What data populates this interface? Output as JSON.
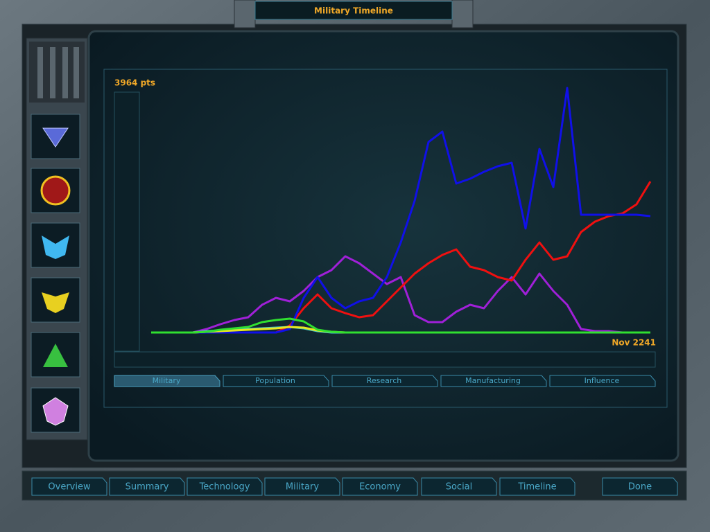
{
  "header": {
    "title": "Military Timeline"
  },
  "chart_data": {
    "type": "line",
    "categories": [
      null,
      null,
      null,
      null,
      null,
      null,
      null,
      null,
      null,
      null,
      null,
      null,
      null,
      null,
      null,
      null,
      null,
      null,
      null,
      null,
      null,
      null,
      null,
      null,
      null,
      null,
      null,
      null,
      null,
      null,
      null,
      null,
      null,
      null,
      null,
      null,
      "Nov 2241"
    ],
    "ylim": [
      0,
      3964
    ],
    "yticks": [
      {
        "value": 3964,
        "label": "3964 pts"
      }
    ],
    "grid": false,
    "series": [
      {
        "color": "#a020d8",
        "values": [
          0,
          0,
          0,
          0,
          56,
          135,
          202,
          247,
          449,
          562,
          505,
          674,
          898,
          1011,
          1235,
          1123,
          954,
          786,
          898,
          281,
          168,
          168,
          337,
          449,
          393,
          674,
          898,
          617,
          954,
          674,
          449,
          56,
          22,
          22,
          0,
          0,
          0
        ]
      },
      {
        "color": "#f01010",
        "values": [
          0,
          0,
          0,
          0,
          0,
          0,
          0,
          0,
          0,
          0,
          112,
          393,
          618,
          393,
          314,
          247,
          281,
          505,
          730,
          954,
          1123,
          1258,
          1348,
          1067,
          1011,
          898,
          842,
          1179,
          1460,
          1179,
          1235,
          1628,
          1797,
          1887,
          1932,
          2078,
          2448
        ]
      },
      {
        "color": "#1010e8",
        "values": [
          0,
          0,
          0,
          0,
          0,
          0,
          0,
          0,
          0,
          0,
          56,
          562,
          899,
          562,
          393,
          505,
          562,
          899,
          1460,
          2134,
          3088,
          3256,
          2414,
          2493,
          2605,
          2695,
          2751,
          1685,
          2976,
          2358,
          3964,
          1909,
          1909,
          1909,
          1909,
          1909,
          1887
        ]
      },
      {
        "color": "#40c8c8",
        "values": [
          0,
          0,
          0,
          0,
          22,
          34,
          45,
          56,
          67,
          79,
          90,
          67,
          22,
          0,
          0,
          0,
          0,
          0,
          0,
          0,
          0,
          0,
          0,
          0,
          0,
          0,
          0,
          0,
          0,
          0,
          0,
          0,
          0,
          0,
          0,
          0,
          0
        ]
      },
      {
        "color": "#e8e820",
        "values": [
          0,
          0,
          0,
          0,
          11,
          22,
          34,
          45,
          56,
          67,
          90,
          79,
          34,
          11,
          0,
          0,
          0,
          0,
          0,
          0,
          0,
          0,
          0,
          0,
          0,
          0,
          0,
          0,
          0,
          0,
          0,
          0,
          0,
          0,
          0,
          0,
          0
        ]
      },
      {
        "color": "#30e030",
        "values": [
          0,
          0,
          0,
          0,
          11,
          45,
          67,
          90,
          168,
          202,
          225,
          180,
          45,
          11,
          0,
          0,
          0,
          0,
          0,
          0,
          0,
          0,
          0,
          0,
          0,
          0,
          0,
          0,
          0,
          0,
          0,
          0,
          0,
          0,
          0,
          0,
          0
        ]
      }
    ]
  },
  "chart_tabs": [
    "Military",
    "Population",
    "Research",
    "Manufacturing",
    "Influence"
  ],
  "nav": [
    "Overview",
    "Summary",
    "Technology",
    "Military",
    "Economy",
    "Social",
    "Timeline"
  ],
  "done": "Done"
}
